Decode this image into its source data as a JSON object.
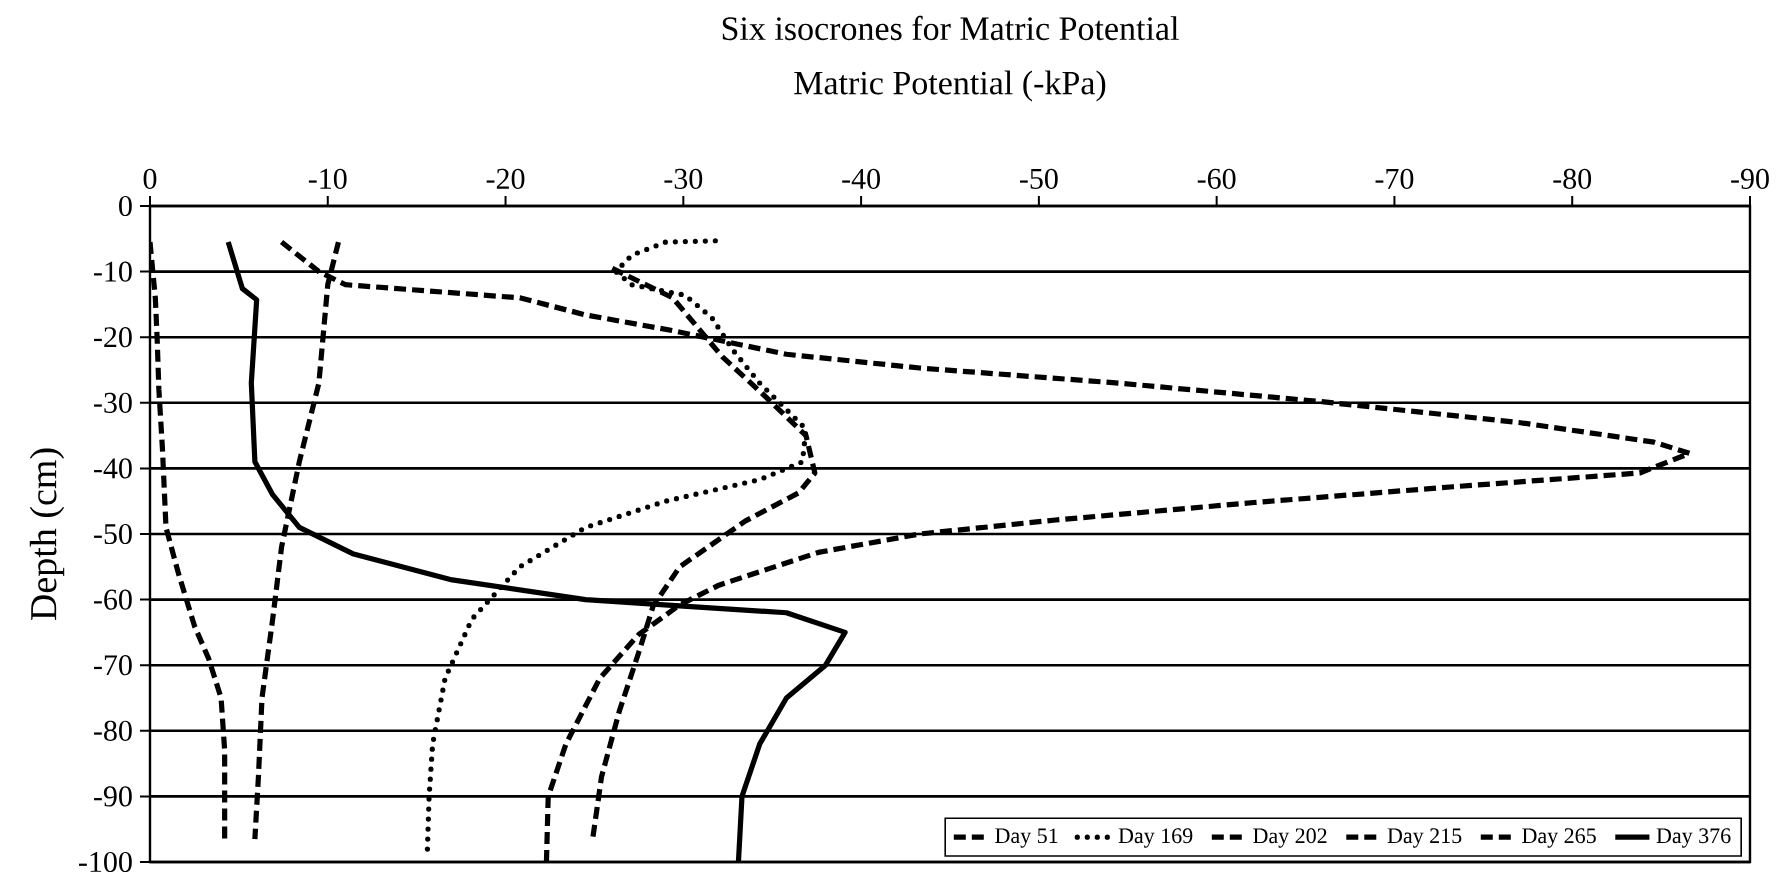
{
  "chart_data": {
    "type": "line",
    "title": "Six isocrones for Matric Potential",
    "xlabel": "Matric Potential (-kPa)",
    "ylabel": "Depth (cm)",
    "xlim": [
      0,
      -90
    ],
    "xticks": [
      0,
      -10,
      -20,
      -30,
      -40,
      -50,
      -60,
      -70,
      -80,
      -90
    ],
    "ylim": [
      -100,
      0
    ],
    "yticks": [
      0,
      -10,
      -20,
      -30,
      -40,
      -50,
      -60,
      -70,
      -80,
      -90,
      -100
    ],
    "grid": "y",
    "legend": "bottom right",
    "marker": "none",
    "series": [
      {
        "name": "Day 51",
        "color": "#000000",
        "line_style": "dashed",
        "x": [
          -10.6,
          -10,
          -9.5,
          -8.4,
          -7.4,
          -6.9,
          -6.3,
          -6.1,
          -5.9
        ],
        "values": [
          -5.5,
          -12,
          -27,
          -39,
          -52,
          -63,
          -75,
          -87,
          -96.5
        ]
      },
      {
        "name": "Day 169",
        "color": "#000000",
        "line_style": "dotted",
        "x": [
          -31.8,
          -29,
          -27.1,
          -26.2,
          -27.1,
          -30.1,
          -31.6,
          -32.8,
          -34.3,
          -36.9,
          -36.7,
          -34.3,
          -29,
          -24.5,
          -20.8,
          -18.1,
          -16.6,
          -15.9,
          -15.7,
          -15.6
        ],
        "values": [
          -5.3,
          -5.5,
          -7.5,
          -10,
          -12,
          -13.6,
          -17,
          -22,
          -27,
          -34,
          -39,
          -41.7,
          -45,
          -49,
          -55,
          -63,
          -72,
          -82,
          -90,
          -98.5
        ]
      },
      {
        "name": "Day 202",
        "color": "#000000",
        "line_style": "dashed",
        "x": [
          -7.4,
          -9.5,
          -11,
          -20.8,
          -24.5,
          -29.4,
          -35.8,
          -43.3,
          -54.5,
          -65.8,
          -77,
          -84.6,
          -86.6,
          -83.8,
          -73.3,
          -62.1,
          -50.8,
          -43.3,
          -37.6,
          -32,
          -29.8,
          -27.5,
          -25.3,
          -23.4,
          -22.4,
          -22.3
        ],
        "values": [
          -5.5,
          -10,
          -12,
          -14,
          -16.6,
          -19,
          -22.6,
          -24.7,
          -27,
          -29.8,
          -33,
          -36,
          -37.7,
          -40.7,
          -42.8,
          -45.2,
          -47.9,
          -50,
          -52.8,
          -57.8,
          -60.8,
          -65.3,
          -72,
          -82,
          -90,
          -100
        ]
      },
      {
        "name": "Day 215",
        "color": "#000000",
        "line_style": "dashed",
        "x": [
          -26,
          -29.4,
          -32.2,
          -34.6,
          -36.9,
          -37.4,
          -36.5,
          -33.5,
          -29.8,
          -28.3,
          -27.5,
          -26.4,
          -25.4,
          -24.9
        ],
        "values": [
          -9.5,
          -14,
          -23,
          -29,
          -35,
          -40.7,
          -43.7,
          -48,
          -55,
          -61,
          -68,
          -77,
          -87,
          -96.5
        ]
      },
      {
        "name": "Day 265",
        "color": "#000000",
        "line_style": "dashed",
        "x": [
          0,
          -0.3,
          -0.4,
          -0.5,
          -0.7,
          -0.9,
          -1.6,
          -2.5,
          -3.3,
          -4,
          -4.2,
          -4.2
        ],
        "values": [
          -5.5,
          -14,
          -20,
          -28,
          -37,
          -49,
          -56,
          -64,
          -69,
          -75,
          -83,
          -97
        ]
      },
      {
        "name": "Day 376",
        "color": "#000000",
        "line_style": "solid",
        "x": [
          -4.4,
          -5.2,
          -6,
          -5.7,
          -5.9,
          -6.9,
          -8.4,
          -11.4,
          -17,
          -24.5,
          -30,
          -35.8,
          -39.1,
          -38,
          -35.8,
          -34.3,
          -33.3,
          -33.1
        ],
        "values": [
          -5.5,
          -12.6,
          -14.3,
          -27,
          -39,
          -44,
          -49,
          -53,
          -57,
          -60,
          -61,
          -62,
          -65,
          -70,
          -75,
          -82,
          -90,
          -100
        ]
      }
    ]
  }
}
